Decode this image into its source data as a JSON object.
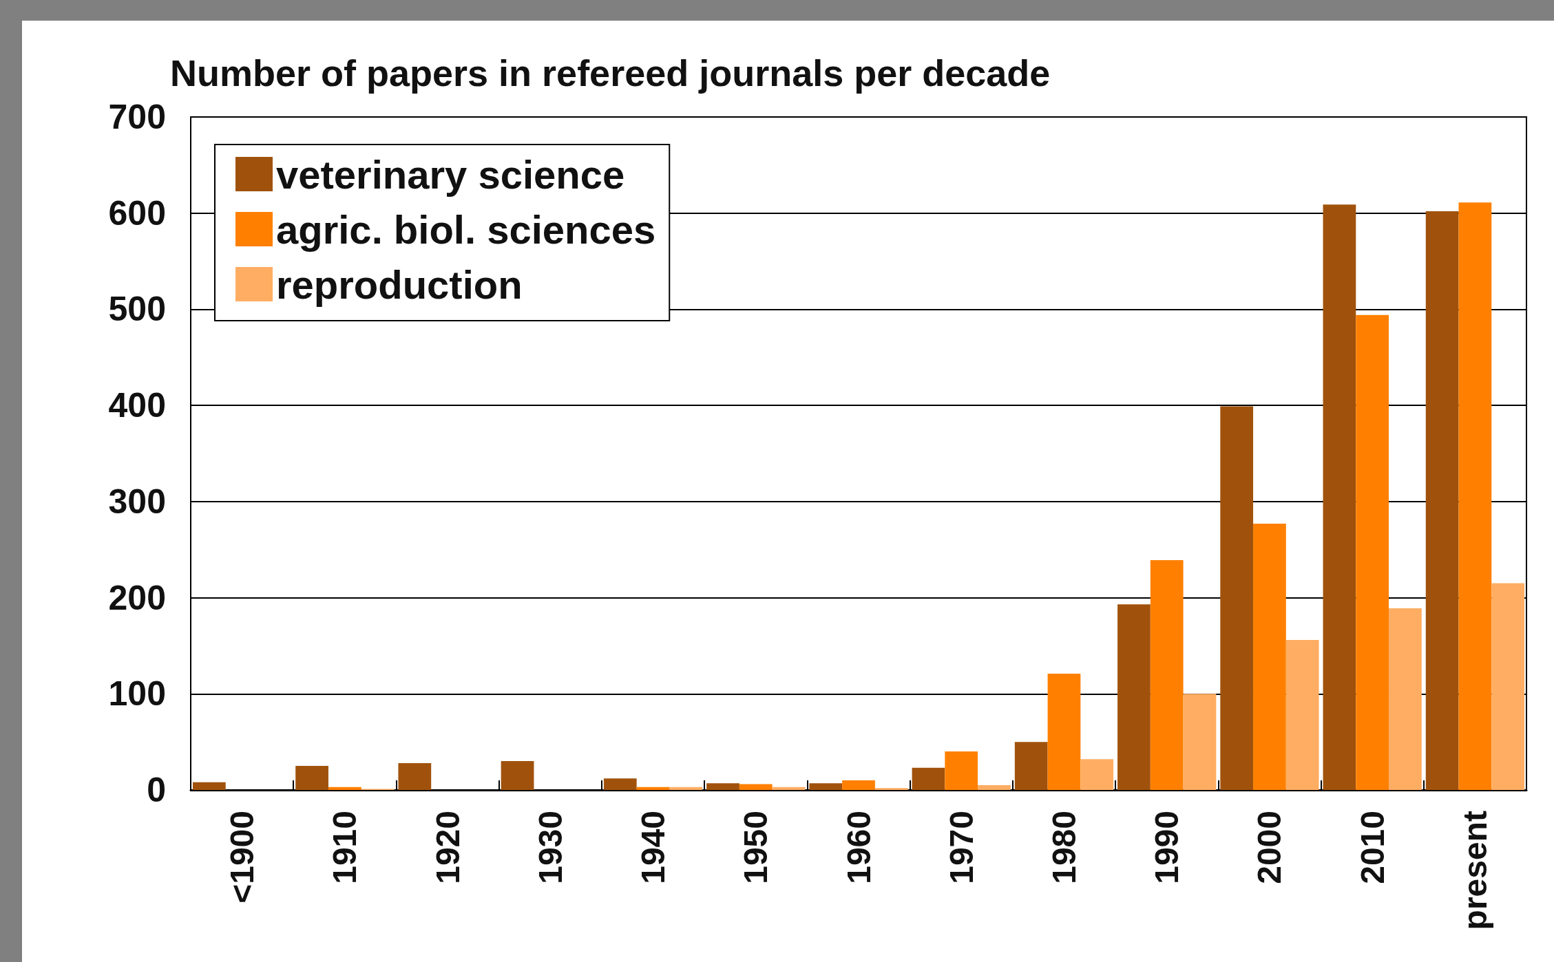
{
  "chart_data": {
    "type": "bar",
    "title": "Number of papers in refereed journals per decade",
    "categories": [
      "<1900",
      "1910",
      "1920",
      "1930",
      "1940",
      "1950",
      "1960",
      "1970",
      "1980",
      "1990",
      "2000",
      "2010",
      "present"
    ],
    "series": [
      {
        "name": "veterinary science",
        "color": "#a0520c",
        "values": [
          8,
          25,
          28,
          30,
          12,
          7,
          7,
          23,
          50,
          193,
          399,
          609,
          602
        ]
      },
      {
        "name": "agric. biol. sciences",
        "color": "#ff8000",
        "values": [
          0,
          3,
          0,
          0,
          3,
          6,
          10,
          40,
          121,
          239,
          277,
          494,
          611
        ]
      },
      {
        "name": "reproduction",
        "color": "#ffad62",
        "values": [
          0,
          1,
          0,
          0,
          3,
          3,
          2,
          5,
          32,
          100,
          156,
          189,
          215
        ]
      }
    ],
    "ylim": [
      0,
      700
    ],
    "yticks": [
      0,
      100,
      200,
      300,
      400,
      500,
      600,
      700
    ],
    "grid": "y",
    "legend": "top left"
  }
}
